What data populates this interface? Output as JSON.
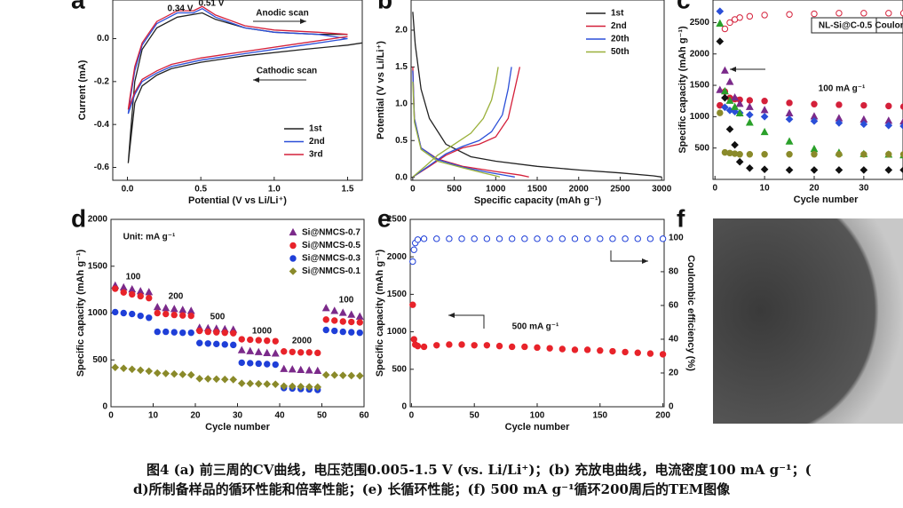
{
  "panels": [
    "a",
    "b",
    "c",
    "d",
    "e",
    "f"
  ],
  "caption": [
    "图4 (a) 前三周的CV曲线，电压范围0.005-1.5 V (vs. Li/Li⁺)；(b) 充放电曲线，电流密度100 mA g⁻¹；(",
    "d)所制备样品的循环性能和倍率性能；(e) 长循环性能；(f) 500 mA g⁻¹循环200周后的TEM图像"
  ],
  "chart_data": [
    {
      "type": "line",
      "x_label": "Potential (V vs Li/Li⁺)",
      "y_label": "Current (mA)",
      "xlim": [
        -0.1,
        1.6
      ],
      "xticks": [
        {
          "value": 0,
          "label": "0.0"
        },
        0.5,
        {
          "value": 1,
          "label": "1.0"
        },
        1.5
      ],
      "ylim": [
        -0.66,
        0.18
      ],
      "yticks": [
        -0.6,
        -0.4,
        -0.2,
        {
          "value": 0,
          "label": "0.0"
        }
      ],
      "legend": "lower right",
      "annotations": [
        "0.34 V",
        "0.51 V",
        "Anodic scan",
        "Cathodic scan"
      ],
      "series": [
        {
          "name": "1st",
          "color": "#222222",
          "x": [
            1.6,
            1.5,
            1.2,
            0.8,
            0.5,
            0.3,
            0.2,
            0.1,
            0.05,
            0.005,
            0.02,
            0.05,
            0.1,
            0.2,
            0.34,
            0.51,
            0.6,
            0.8,
            1.0,
            1.3,
            1.5
          ],
          "values": [
            -0.02,
            -0.03,
            -0.05,
            -0.08,
            -0.11,
            -0.14,
            -0.17,
            -0.22,
            -0.3,
            -0.58,
            -0.45,
            -0.2,
            -0.05,
            0.05,
            0.1,
            0.12,
            0.09,
            0.05,
            0.03,
            0.02,
            0.02
          ]
        },
        {
          "name": "2nd",
          "color": "#2b4fd8",
          "x": [
            1.5,
            1.2,
            0.8,
            0.5,
            0.3,
            0.2,
            0.1,
            0.05,
            0.005,
            0.02,
            0.05,
            0.1,
            0.2,
            0.34,
            0.45,
            0.51,
            0.6,
            0.8,
            1.0,
            1.3,
            1.5
          ],
          "values": [
            0.0,
            -0.03,
            -0.07,
            -0.1,
            -0.13,
            -0.16,
            -0.2,
            -0.26,
            -0.35,
            -0.28,
            -0.15,
            -0.03,
            0.07,
            0.12,
            0.12,
            0.14,
            0.1,
            0.05,
            0.03,
            0.02,
            0.0
          ]
        },
        {
          "name": "3rd",
          "color": "#d4203a",
          "x": [
            1.5,
            1.2,
            0.8,
            0.5,
            0.3,
            0.2,
            0.1,
            0.05,
            0.005,
            0.02,
            0.05,
            0.1,
            0.2,
            0.34,
            0.45,
            0.51,
            0.6,
            0.8,
            1.0,
            1.3,
            1.5
          ],
          "values": [
            0.01,
            -0.02,
            -0.06,
            -0.09,
            -0.12,
            -0.15,
            -0.19,
            -0.25,
            -0.33,
            -0.26,
            -0.13,
            -0.02,
            0.08,
            0.13,
            0.13,
            0.15,
            0.11,
            0.06,
            0.04,
            0.03,
            0.02
          ]
        }
      ]
    },
    {
      "type": "line",
      "x_label": "Specific capacity (mAh g⁻¹)",
      "y_label": "Potential (V vs Li/Li⁺)",
      "xlim": [
        -20,
        3030
      ],
      "xticks": [
        0,
        500,
        1000,
        1500,
        2000,
        2500,
        3000
      ],
      "ylim": [
        -0.04,
        2.41
      ],
      "yticks": [
        {
          "value": 0,
          "label": "0.0"
        },
        0.5,
        {
          "value": 1,
          "label": "1.0"
        },
        1.5,
        {
          "value": 2,
          "label": "2.0"
        }
      ],
      "legend": "upper right",
      "series": [
        {
          "name": "1st",
          "color": "#222222",
          "x": [
            0,
            30,
            100,
            200,
            400,
            700,
            1000,
            1500,
            2000,
            2500,
            2900,
            3000
          ],
          "values": [
            2.25,
            1.8,
            1.2,
            0.8,
            0.45,
            0.28,
            0.22,
            0.15,
            0.1,
            0.06,
            0.02,
            0.005
          ]
        },
        {
          "name": "2nd",
          "color": "#d4203a",
          "x": [
            0,
            20,
            100,
            300,
            600,
            1000,
            1300,
            1400,
            null,
            0,
            200,
            400,
            600,
            800,
            1000,
            1150,
            1230,
            1290
          ],
          "values": [
            1.5,
            0.8,
            0.4,
            0.25,
            0.15,
            0.08,
            0.03,
            0.005,
            null,
            0.005,
            0.15,
            0.3,
            0.4,
            0.45,
            0.55,
            0.8,
            1.2,
            1.5
          ]
        },
        {
          "name": "20th",
          "color": "#2b4fd8",
          "x": [
            0,
            20,
            100,
            300,
            600,
            900,
            1150,
            1230,
            null,
            0,
            200,
            400,
            600,
            800,
            950,
            1080,
            1150,
            1190
          ],
          "values": [
            1.45,
            0.8,
            0.4,
            0.24,
            0.14,
            0.07,
            0.02,
            0.005,
            null,
            0.005,
            0.16,
            0.32,
            0.42,
            0.5,
            0.62,
            0.85,
            1.2,
            1.5
          ]
        },
        {
          "name": "50th",
          "color": "#9ab03a",
          "x": [
            0,
            20,
            100,
            300,
            600,
            850,
            1000,
            1050,
            null,
            0,
            150,
            300,
            500,
            700,
            850,
            950,
            1000,
            1030
          ],
          "values": [
            1.3,
            0.75,
            0.38,
            0.22,
            0.13,
            0.06,
            0.02,
            0.005,
            null,
            0.005,
            0.15,
            0.3,
            0.45,
            0.6,
            0.8,
            1.05,
            1.3,
            1.5
          ]
        }
      ]
    },
    {
      "type": "scatter",
      "x_label": "Cycle number",
      "y_label": "Specific capacity (mAh g⁻¹)",
      "xlim": [
        -0.4,
        37.9
      ],
      "xticks": [
        0,
        10,
        20,
        30
      ],
      "ylim": [
        0,
        2860
      ],
      "yticks": [
        500,
        1000,
        1500,
        2000,
        2500
      ],
      "annotations": [
        "NL-Si@C-0.5",
        "Coulom",
        "100 mA g⁻¹"
      ],
      "x": [
        1,
        2,
        3,
        4,
        5,
        7,
        10,
        15,
        20,
        25,
        30,
        35,
        38
      ],
      "series": [
        {
          "color": "#d4203a",
          "marker": "open-circle",
          "values": [
            1180,
            2400,
            2500,
            2550,
            2580,
            2600,
            2620,
            2630,
            2640,
            2650,
            2650,
            2650,
            2650
          ]
        },
        {
          "color": "#d4203a",
          "marker": "circle",
          "values": [
            1180,
            1400,
            1300,
            1280,
            1270,
            1260,
            1250,
            1220,
            1200,
            1190,
            1180,
            1170,
            1160
          ]
        },
        {
          "color": "#7b2a8a",
          "marker": "triangle",
          "values": [
            1420,
            1730,
            1550,
            1300,
            1200,
            1150,
            1100,
            1050,
            1000,
            970,
            950,
            930,
            920
          ]
        },
        {
          "color": "#2b4fd8",
          "marker": "diamond",
          "values": [
            2680,
            1150,
            1100,
            1080,
            1060,
            1030,
            1000,
            960,
            930,
            900,
            880,
            860,
            850
          ]
        },
        {
          "color": "#2aa02a",
          "marker": "triangle",
          "values": [
            2480,
            1400,
            1250,
            1150,
            1050,
            900,
            750,
            600,
            480,
            420,
            400,
            390,
            380
          ]
        },
        {
          "color": "#8a8a2a",
          "marker": "circle",
          "values": [
            1060,
            430,
            420,
            410,
            400,
            400,
            400,
            400,
            400,
            400,
            400,
            400,
            400
          ]
        },
        {
          "color": "#111111",
          "marker": "diamond",
          "values": [
            2200,
            1300,
            800,
            550,
            280,
            180,
            160,
            150,
            150,
            150,
            150,
            150,
            150
          ]
        }
      ]
    },
    {
      "type": "scatter",
      "x_label": "Cycle number",
      "y_label": "Specific capacity (mAh g⁻¹)",
      "xlim": [
        0,
        60
      ],
      "xticks": [
        0,
        10,
        20,
        30,
        40,
        50,
        60
      ],
      "ylim": [
        0,
        2000
      ],
      "yticks": [
        0,
        500,
        1000,
        1500,
        2000
      ],
      "legend": "upper right",
      "annotations": [
        "Unit: mA g⁻¹",
        "100",
        "200",
        "500",
        "1000",
        "2000",
        "100"
      ],
      "x": [
        1,
        3,
        5,
        7,
        9,
        11,
        13,
        15,
        17,
        19,
        21,
        23,
        25,
        27,
        29,
        31,
        33,
        35,
        37,
        39,
        41,
        43,
        45,
        47,
        49,
        51,
        53,
        55,
        57,
        59
      ],
      "series": [
        {
          "name": "Si@NMCS-0.7",
          "color": "#7b2a8a",
          "marker": "triangle",
          "values": [
            1290,
            1270,
            1250,
            1230,
            1220,
            1060,
            1050,
            1040,
            1030,
            1020,
            840,
            835,
            830,
            825,
            820,
            600,
            590,
            580,
            570,
            565,
            400,
            395,
            390,
            385,
            380,
            1050,
            1020,
            1000,
            980,
            960
          ]
        },
        {
          "name": "Si@NMCS-0.5",
          "color": "#e8232a",
          "marker": "circle",
          "values": [
            1260,
            1220,
            1200,
            1180,
            1160,
            1000,
            990,
            980,
            975,
            970,
            810,
            800,
            795,
            790,
            785,
            720,
            715,
            710,
            705,
            700,
            590,
            585,
            580,
            580,
            575,
            930,
            920,
            910,
            905,
            900
          ]
        },
        {
          "name": "Si@NMCS-0.3",
          "color": "#1f3fd8",
          "marker": "circle",
          "values": [
            1010,
            1000,
            990,
            970,
            950,
            800,
            800,
            795,
            790,
            790,
            680,
            675,
            670,
            665,
            660,
            470,
            465,
            460,
            455,
            450,
            200,
            195,
            190,
            185,
            180,
            820,
            810,
            800,
            795,
            790
          ]
        },
        {
          "name": "Si@NMCS-0.1",
          "color": "#8a8a2a",
          "marker": "diamond",
          "values": [
            420,
            410,
            400,
            390,
            380,
            360,
            355,
            350,
            345,
            340,
            300,
            298,
            295,
            292,
            290,
            250,
            248,
            245,
            242,
            240,
            220,
            218,
            215,
            212,
            210,
            340,
            338,
            335,
            332,
            330
          ]
        }
      ]
    },
    {
      "type": "scatter",
      "x_label": "Cycle number",
      "y_label": "Specific capacity (mAh g⁻¹)",
      "y2_label": "Coulombic efficiency (%)",
      "xlim": [
        -1,
        201
      ],
      "xticks": [
        0,
        50,
        100,
        150,
        200
      ],
      "ylim": [
        0,
        2500
      ],
      "yticks": [
        0,
        500,
        1000,
        1500,
        2000,
        2500
      ],
      "y2lim": [
        0,
        111
      ],
      "y2ticks": [
        0,
        20,
        40,
        60,
        80,
        100
      ],
      "annotations": [
        "500 mA g⁻¹"
      ],
      "x": [
        1,
        2,
        3,
        5,
        10,
        20,
        30,
        40,
        50,
        60,
        70,
        80,
        90,
        100,
        110,
        120,
        130,
        140,
        150,
        160,
        170,
        180,
        190,
        200
      ],
      "series": [
        {
          "color": "#e8232a",
          "marker": "circle",
          "values": [
            1360,
            900,
            830,
            810,
            800,
            820,
            830,
            830,
            820,
            820,
            810,
            800,
            800,
            790,
            780,
            770,
            760,
            760,
            750,
            740,
            730,
            720,
            710,
            700
          ]
        },
        {
          "color": "#1f3fd8",
          "marker": "open-circle",
          "axis": "y2",
          "values": [
            86,
            93,
            97,
            99,
            99.5,
            99.5,
            99.5,
            99.5,
            99.5,
            99.5,
            99.5,
            99.5,
            99.5,
            99.5,
            99.5,
            99.5,
            99.5,
            99.5,
            99.5,
            99.5,
            99.5,
            99.5,
            99.5,
            99.5
          ]
        }
      ]
    }
  ]
}
